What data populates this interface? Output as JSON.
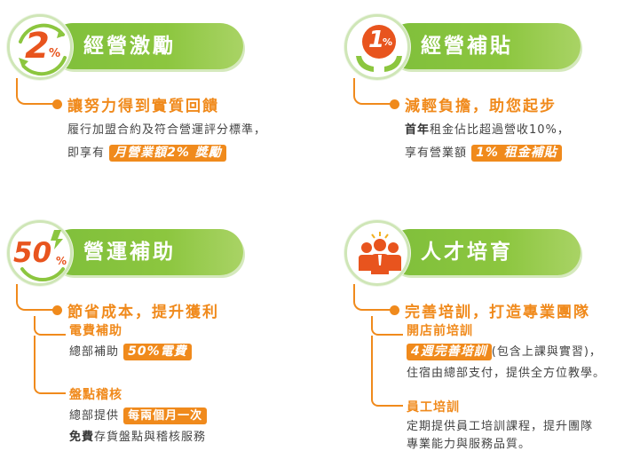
{
  "colors": {
    "green": "#8cc63f",
    "orange": "#f08a1c",
    "text": "#444444"
  },
  "incentive": {
    "badge_number": "2",
    "badge_percent": "%",
    "title": "經營激勵",
    "heading": "讓努力得到實質回饋",
    "line1": "履行加盟合約及符合營運評分標準，",
    "line2_prefix": "即享有",
    "line2_highlight": "月營業額2% 獎勵"
  },
  "rent": {
    "badge_number": "1",
    "badge_percent": "%",
    "title": "經營補貼",
    "heading": "減輕負擔，助您起步",
    "line1_bold": "首年",
    "line1_rest": "租金佔比超過營收10%，",
    "line2_prefix": "享有營業額",
    "line2_highlight": "1% 租金補貼"
  },
  "ops": {
    "badge_number": "50",
    "badge_percent": "%",
    "title": "營運補助",
    "heading": "節省成本，提升獲利",
    "sub1_title": "電費補助",
    "sub1_prefix": "總部補助",
    "sub1_highlight": "50%電費",
    "sub2_title": "盤點稽核",
    "sub2_prefix": "總部提供",
    "sub2_highlight": "每兩個月一次",
    "sub2_line2_bold": "免費",
    "sub2_line2_rest": "存貨盤點與稽核服務"
  },
  "talent": {
    "icon": "team-people-icon",
    "title": "人才培育",
    "heading": "完善培訓，打造專業團隊",
    "sub1_title": "開店前培訓",
    "sub1_highlight": "4週完善培訓",
    "sub1_rest": "(包含上課與實習)，",
    "sub1_line2": "住宿由總部支付，提供全方位教學。",
    "sub2_title": "員工培訓",
    "sub2_line1": "定期提供員工培訓課程，提升團隊",
    "sub2_line2": "專業能力與服務品質。"
  }
}
